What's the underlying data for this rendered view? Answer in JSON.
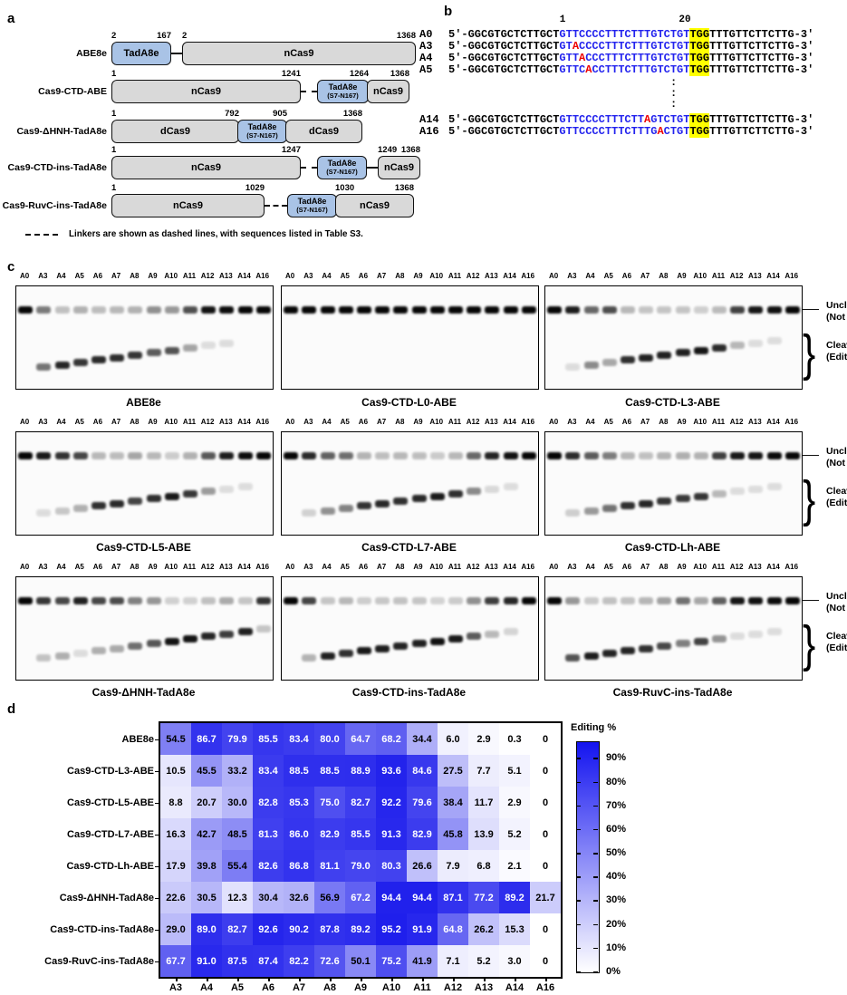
{
  "figure": {
    "letters": {
      "a": "a",
      "b": "b",
      "c": "c",
      "d": "d"
    },
    "panel_a": {
      "rows": [
        {
          "label": "ABE8e",
          "b1": {
            "text": "TadA8e",
            "s": "2",
            "e": "167"
          },
          "b2": {
            "text": "nCas9",
            "s": "2",
            "e": "1368"
          }
        },
        {
          "label": "Cas9-CTD-ABE",
          "b1": {
            "text": "nCas9",
            "s": "1",
            "e": "1241"
          },
          "b2": {
            "text": "TadA8e",
            "sub": "(S7-N167)",
            "e": "1264"
          },
          "b3": {
            "text": "nCas9",
            "e": "1368"
          }
        },
        {
          "label": "Cas9-ΔHNH-TadA8e",
          "b1": {
            "text": "dCas9",
            "s": "1",
            "e": "792"
          },
          "b2": {
            "text": "TadA8e",
            "sub": "(S7-N167)",
            "e": "905"
          },
          "b3": {
            "text": "dCas9",
            "e": "1368"
          }
        },
        {
          "label": "Cas9-CTD-ins-TadA8e",
          "b1": {
            "text": "nCas9",
            "s": "1",
            "e": "1247"
          },
          "b2": {
            "text": "TadA8e",
            "sub": "(S7-N167)"
          },
          "b3": {
            "text": "nCas9",
            "s": "1249",
            "e": "1368"
          }
        },
        {
          "label": "Cas9-RuvC-ins-TadA8e",
          "b1": {
            "text": "nCas9",
            "s": "1",
            "e": "1029"
          },
          "b2": {
            "text": "TadA8e",
            "sub": "(S7-N167)"
          },
          "b3": {
            "text": "nCas9",
            "s": "1030",
            "e": "1368"
          }
        }
      ],
      "legend_text": "Linkers are shown as dashed lines, with sequences listed in Table S3."
    },
    "panel_b": {
      "pos1": "1",
      "pos20": "20",
      "rows": [
        {
          "label": "A0",
          "prefix": "5'-GGCGTGCTCTTGCT",
          "b1": "GTTCCCCTTTCTTTGTCTGT",
          "red": "",
          "b2": "",
          "pam": "TGG",
          "suffix": "TTTGTTCTTCTTG-3'"
        },
        {
          "label": "A3",
          "prefix": "5'-GGCGTGCTCTTGCT",
          "b1": "GT",
          "red": "A",
          "b2": "CCCCTTTCTTTGTCTGT",
          "pam": "TGG",
          "suffix": "TTTGTTCTTCTTG-3'"
        },
        {
          "label": "A4",
          "prefix": "5'-GGCGTGCTCTTGCT",
          "b1": "GTT",
          "red": "A",
          "b2": "CCCTTTCTTTGTCTGT",
          "pam": "TGG",
          "suffix": "TTTGTTCTTCTTG-3'"
        },
        {
          "label": "A5",
          "prefix": "5'-GGCGTGCTCTTGCT",
          "b1": "GTTC",
          "red": "A",
          "b2": "CCTTTCTTTGTCTGT",
          "pam": "TGG",
          "suffix": "TTTGTTCTTCTTG-3'"
        },
        {
          "label": "A14",
          "prefix": "5'-GGCGTGCTCTTGCT",
          "b1": "GTTCCCCTTTCTT",
          "red": "A",
          "b2": "GTCTGT",
          "pam": "TGG",
          "suffix": "TTTGTTCTTCTTG-3'"
        },
        {
          "label": "A16",
          "prefix": "5'-GGCGTGCTCTTGCT",
          "b1": "GTTCCCCTTTCTTTG",
          "red": "A",
          "b2": "CTGT",
          "pam": "TGG",
          "suffix": "TTTGTTCTTCTTG-3'"
        }
      ]
    },
    "panel_c": {
      "lane_labels": [
        "A0",
        "A3",
        "A4",
        "A5",
        "A6",
        "A7",
        "A8",
        "A9",
        "A10",
        "A11",
        "A12",
        "A13",
        "A14",
        "A16"
      ],
      "right_labels": {
        "uncleaved_line1": "Uncleaved",
        "uncleaved_line2": "(Not edited)",
        "cleaved_line1": "Cleaved",
        "cleaved_line2": "(Edited)"
      },
      "gels": [
        {
          "name": "ABE8e",
          "values": [
            0,
            54.5,
            86.7,
            79.9,
            85.5,
            83.4,
            80.0,
            64.7,
            68.2,
            34.4,
            6.0,
            2.9,
            0.3,
            0
          ]
        },
        {
          "name": "Cas9-CTD-L0-ABE",
          "values": [
            0,
            0,
            0,
            0,
            0,
            0,
            0,
            0,
            0,
            0,
            0,
            0,
            0,
            0
          ]
        },
        {
          "name": "Cas9-CTD-L3-ABE",
          "values": [
            0,
            10.5,
            45.5,
            33.2,
            83.4,
            88.5,
            88.5,
            88.9,
            93.6,
            84.6,
            27.5,
            7.7,
            5.1,
            0
          ]
        },
        {
          "name": "Cas9-CTD-L5-ABE",
          "values": [
            0,
            8.8,
            20.7,
            30.0,
            82.8,
            85.3,
            75.0,
            82.7,
            92.2,
            79.6,
            38.4,
            11.7,
            2.9,
            0
          ]
        },
        {
          "name": "Cas9-CTD-L7-ABE",
          "values": [
            0,
            16.3,
            42.7,
            48.5,
            81.3,
            86.0,
            82.9,
            85.5,
            91.3,
            82.9,
            45.8,
            13.9,
            5.2,
            0
          ]
        },
        {
          "name": "Cas9-CTD-Lh-ABE",
          "values": [
            0,
            17.9,
            39.8,
            55.4,
            82.6,
            86.8,
            81.1,
            79.0,
            80.3,
            26.6,
            7.9,
            6.8,
            2.1,
            0
          ]
        },
        {
          "name": "Cas9-ΔHNH-TadA8e",
          "values": [
            0,
            22.6,
            30.5,
            12.3,
            30.4,
            32.6,
            56.9,
            67.2,
            94.4,
            94.4,
            87.1,
            77.2,
            89.2,
            21.7
          ]
        },
        {
          "name": "Cas9-CTD-ins-TadA8e",
          "values": [
            0,
            29.0,
            89.0,
            82.7,
            92.6,
            90.2,
            87.8,
            89.2,
            95.2,
            91.9,
            64.8,
            26.2,
            15.3,
            0
          ]
        },
        {
          "name": "Cas9-RuvC-ins-TadA8e",
          "values": [
            0,
            67.7,
            91.0,
            87.5,
            87.4,
            82.2,
            72.6,
            50.1,
            75.2,
            41.9,
            7.1,
            5.2,
            3.0,
            0
          ]
        }
      ]
    }
  },
  "chart_data": {
    "type": "heatmap",
    "title": "Editing %",
    "rows": [
      "ABE8e",
      "Cas9-CTD-L3-ABE",
      "Cas9-CTD-L5-ABE",
      "Cas9-CTD-L7-ABE",
      "Cas9-CTD-Lh-ABE",
      "Cas9-ΔHNH-TadA8e",
      "Cas9-CTD-ins-TadA8e",
      "Cas9-RuvC-ins-TadA8e"
    ],
    "columns": [
      "A3",
      "A4",
      "A5",
      "A6",
      "A7",
      "A8",
      "A9",
      "A10",
      "A11",
      "A12",
      "A13",
      "A14",
      "A16"
    ],
    "values": [
      [
        "54.5",
        "86.7",
        "79.9",
        "85.5",
        "83.4",
        "80.0",
        "64.7",
        "68.2",
        "34.4",
        "6.0",
        "2.9",
        "0.3",
        "0"
      ],
      [
        "10.5",
        "45.5",
        "33.2",
        "83.4",
        "88.5",
        "88.5",
        "88.9",
        "93.6",
        "84.6",
        "27.5",
        "7.7",
        "5.1",
        "0"
      ],
      [
        "8.8",
        "20.7",
        "30.0",
        "82.8",
        "85.3",
        "75.0",
        "82.7",
        "92.2",
        "79.6",
        "38.4",
        "11.7",
        "2.9",
        "0"
      ],
      [
        "16.3",
        "42.7",
        "48.5",
        "81.3",
        "86.0",
        "82.9",
        "85.5",
        "91.3",
        "82.9",
        "45.8",
        "13.9",
        "5.2",
        "0"
      ],
      [
        "17.9",
        "39.8",
        "55.4",
        "82.6",
        "86.8",
        "81.1",
        "79.0",
        "80.3",
        "26.6",
        "7.9",
        "6.8",
        "2.1",
        "0"
      ],
      [
        "22.6",
        "30.5",
        "12.3",
        "30.4",
        "32.6",
        "56.9",
        "67.2",
        "94.4",
        "94.4",
        "87.1",
        "77.2",
        "89.2",
        "21.7"
      ],
      [
        "29.0",
        "89.0",
        "82.7",
        "92.6",
        "90.2",
        "87.8",
        "89.2",
        "95.2",
        "91.9",
        "64.8",
        "26.2",
        "15.3",
        "0"
      ],
      [
        "67.7",
        "91.0",
        "87.5",
        "87.4",
        "82.2",
        "72.6",
        "50.1",
        "75.2",
        "41.9",
        "7.1",
        "5.2",
        "3.0",
        "0"
      ]
    ],
    "colorbar_ticks": [
      "90%",
      "80%",
      "70%",
      "60%",
      "50%",
      "40%",
      "30%",
      "20%",
      "10%",
      "0%"
    ],
    "colorbar_max": 97,
    "color_high": "#1414f0",
    "color_low": "#ffffff",
    "legend_position": "right",
    "grid": false
  }
}
